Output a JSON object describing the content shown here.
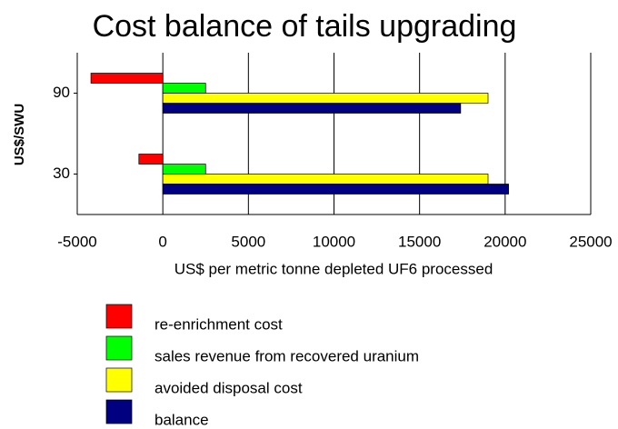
{
  "chart_data": {
    "type": "hbar",
    "title": "Cost balance of tails upgrading",
    "xlabel": "US$ per metric tonne depleted UF6 processed",
    "ylabel": "US$/SWU",
    "categories": [
      "90",
      "30"
    ],
    "series": [
      {
        "name": "re-enrichment cost",
        "color": "#ff0000",
        "values": [
          -4200,
          -1400
        ]
      },
      {
        "name": "sales revenue from recovered uranium",
        "color": "#00ff00",
        "values": [
          2500,
          2500
        ]
      },
      {
        "name": "avoided disposal cost",
        "color": "#ffff00",
        "values": [
          19000,
          19000
        ]
      },
      {
        "name": "balance",
        "color": "#000080",
        "values": [
          17400,
          20200
        ]
      }
    ],
    "xlim": [
      -5000,
      25000
    ],
    "xticks": [
      -5000,
      0,
      5000,
      10000,
      15000,
      20000,
      25000
    ],
    "grid": true
  }
}
